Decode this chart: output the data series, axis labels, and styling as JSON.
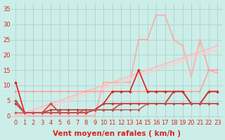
{
  "x": [
    0,
    1,
    2,
    3,
    4,
    5,
    6,
    7,
    8,
    9,
    10,
    11,
    12,
    13,
    14,
    15,
    16,
    17,
    18,
    19,
    20,
    21,
    22,
    23
  ],
  "series": [
    {
      "y": [
        0,
        0,
        0,
        0,
        0,
        0,
        0,
        0,
        0,
        0,
        11,
        11,
        11,
        11,
        25,
        25,
        33,
        33,
        25,
        23,
        13,
        25,
        15,
        14
      ],
      "color": "#ffaaaa",
      "lw": 1.2,
      "marker": "s",
      "ms": 2.0
    },
    {
      "y": [
        0,
        1,
        2,
        3,
        4,
        5,
        6,
        7,
        8,
        9,
        10,
        11,
        12,
        13,
        14,
        15,
        16,
        17,
        18,
        19,
        20,
        21,
        22,
        23
      ],
      "color": "#ffbbbb",
      "lw": 1.2,
      "marker": "s",
      "ms": 2.0
    },
    {
      "y": [
        0,
        0,
        1,
        2,
        3,
        4,
        5,
        6,
        7,
        8,
        9,
        10,
        11,
        12,
        13,
        14,
        15,
        16,
        17,
        18,
        19,
        20,
        21,
        22
      ],
      "color": "#ffcccc",
      "lw": 1.2,
      "marker": "s",
      "ms": 2.0
    },
    {
      "y": [
        8,
        8,
        8,
        8,
        8,
        8,
        8,
        8,
        8,
        8,
        8,
        8,
        8,
        8,
        8,
        8,
        8,
        8,
        8,
        8,
        8,
        8,
        15,
        15
      ],
      "color": "#ff9999",
      "lw": 1.0,
      "marker": "s",
      "ms": 2.0
    },
    {
      "y": [
        11,
        1,
        1,
        1,
        1,
        1,
        1,
        1,
        1,
        2,
        4,
        8,
        8,
        8,
        15,
        8,
        8,
        8,
        8,
        8,
        4,
        4,
        8,
        8
      ],
      "color": "#dd2222",
      "lw": 1.2,
      "marker": "D",
      "ms": 2.0
    },
    {
      "y": [
        4,
        1,
        1,
        1,
        2,
        2,
        2,
        2,
        2,
        2,
        4,
        4,
        4,
        4,
        4,
        4,
        4,
        4,
        8,
        8,
        4,
        4,
        8,
        8
      ],
      "color": "#cc3333",
      "lw": 1.2,
      "marker": "D",
      "ms": 2.0
    },
    {
      "y": [
        5,
        1,
        1,
        1,
        4,
        1,
        1,
        1,
        1,
        2,
        2,
        2,
        4,
        4,
        4,
        4,
        4,
        4,
        4,
        4,
        4,
        4,
        4,
        4
      ],
      "color": "#cc4444",
      "lw": 1.2,
      "marker": "D",
      "ms": 2.0
    },
    {
      "y": [
        1,
        1,
        1,
        1,
        1,
        1,
        1,
        1,
        2,
        2,
        2,
        2,
        2,
        2,
        2,
        4,
        4,
        4,
        4,
        4,
        4,
        4,
        4,
        4
      ],
      "color": "#bb5555",
      "lw": 1.0,
      "marker": "D",
      "ms": 1.8
    }
  ],
  "bg_color": "#cceee8",
  "grid_color": "#aacccc",
  "xlabel": "Vent moyen/en rafales ( km/h )",
  "xlabel_color": "#dd2222",
  "xlabel_fontsize": 7.5,
  "tick_color": "#dd2222",
  "tick_fontsize": 6,
  "yticks": [
    0,
    5,
    10,
    15,
    20,
    25,
    30,
    35
  ],
  "ylim": [
    -1,
    37
  ],
  "xlim": [
    -0.5,
    23.5
  ]
}
